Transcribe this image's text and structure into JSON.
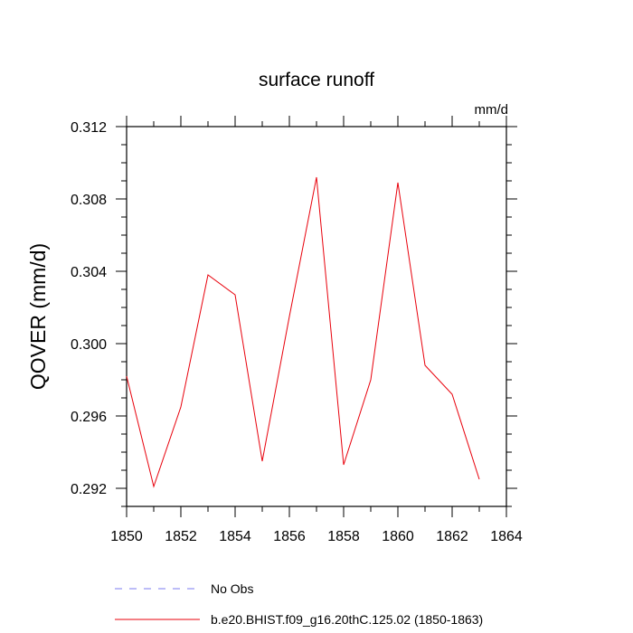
{
  "chart_data": {
    "type": "line",
    "title": "surface runoff",
    "units": "mm/d",
    "ylabel": "QOVER  (mm/d)",
    "xlabel": "",
    "xlim": [
      1850,
      1864
    ],
    "ylim": [
      0.291,
      0.312
    ],
    "xticks": [
      1850,
      1852,
      1854,
      1856,
      1858,
      1860,
      1862,
      1864
    ],
    "xtick_labels": [
      "1850",
      "1852",
      "1854",
      "1856",
      "1858",
      "1860",
      "1862",
      "1864"
    ],
    "yticks": [
      0.292,
      0.296,
      0.3,
      0.304,
      0.308,
      0.312
    ],
    "ytick_labels": [
      "0.292",
      "0.296",
      "0.300",
      "0.304",
      "0.308",
      "0.312"
    ],
    "grid": false,
    "legend_position": "bottom",
    "series": [
      {
        "name": "b.e20.BHIST.f09_g16.20thC.125.02 (1850-1863)",
        "color": "#e8000b",
        "style": "solid",
        "x": [
          1850,
          1851,
          1852,
          1853,
          1854,
          1855,
          1856,
          1857,
          1858,
          1859,
          1860,
          1861,
          1862,
          1863
        ],
        "y": [
          0.2982,
          0.2921,
          0.2965,
          0.3038,
          0.3027,
          0.2935,
          0.3015,
          0.3092,
          0.2933,
          0.298,
          0.3089,
          0.2988,
          0.2972,
          0.2925
        ]
      }
    ],
    "legend": [
      {
        "name": "No Obs",
        "color": "#7b7bf0",
        "style": "dashed"
      },
      {
        "name": "b.e20.BHIST.f09_g16.20thC.125.02 (1850-1863)",
        "color": "#e8000b",
        "style": "solid"
      }
    ]
  }
}
